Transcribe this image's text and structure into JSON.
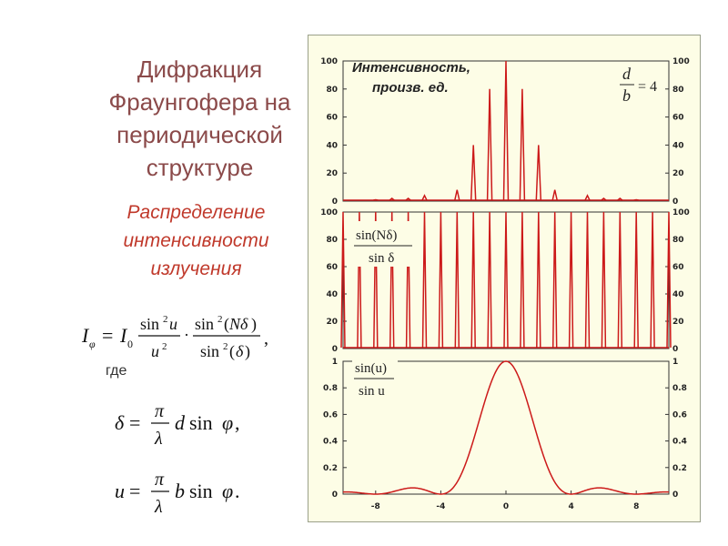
{
  "slide": {
    "title_lines": [
      "Дифракция",
      "Фраунгофера на",
      "периодической",
      "структуре"
    ],
    "subtitle_lines": [
      "Распределение",
      "интенсивности",
      "излучения"
    ],
    "where_label": "где"
  },
  "figure": {
    "top_label_line1": "Интенсивность,",
    "top_label_line2": "произв. ед.",
    "ratio_num": "d",
    "ratio_den": "b",
    "ratio_value": "= 4",
    "mid_label_num": "sin(Nδ)",
    "mid_label_den": "sin δ",
    "bot_label_num": "sin(u)",
    "bot_label_den": "sin u",
    "colors": {
      "curve": "#cc1a1a",
      "background": "#fdfde6",
      "axis": "#333333"
    }
  },
  "chart_data": [
    {
      "type": "line",
      "panel": "top",
      "description_source": "product of the two lower panels",
      "y_ticks": [
        "0",
        "20",
        "40",
        "60",
        "80",
        "100"
      ],
      "ylim": [
        0,
        100
      ],
      "peaks": [
        {
          "x": -8,
          "y": 1
        },
        {
          "x": -7,
          "y": 2
        },
        {
          "x": -6,
          "y": 2
        },
        {
          "x": -5,
          "y": 4
        },
        {
          "x": -3,
          "y": 8
        },
        {
          "x": -2,
          "y": 40
        },
        {
          "x": -1,
          "y": 80
        },
        {
          "x": 0,
          "y": 100
        },
        {
          "x": 1,
          "y": 80
        },
        {
          "x": 2,
          "y": 40
        },
        {
          "x": 3,
          "y": 8
        },
        {
          "x": 5,
          "y": 4
        },
        {
          "x": 6,
          "y": 2
        },
        {
          "x": 7,
          "y": 2
        },
        {
          "x": 8,
          "y": 1
        }
      ]
    },
    {
      "type": "line",
      "panel": "middle",
      "y_ticks": [
        "0",
        "20",
        "40",
        "60",
        "80",
        "100"
      ],
      "ylim": [
        0,
        100
      ],
      "peak_value": 100,
      "peak_spacing": 1,
      "xlim": [
        -10,
        10
      ]
    },
    {
      "type": "line",
      "panel": "bottom",
      "y_ticks": [
        "0",
        "0.2",
        "0.4",
        "0.6",
        "0.8",
        "1"
      ],
      "x_ticks": [
        "-8",
        "-4",
        "0",
        "4",
        "8"
      ],
      "xlim": [
        -10,
        10
      ],
      "ylim": [
        0,
        1
      ],
      "function": "sinc^2, first zeros at x = ±4"
    }
  ]
}
